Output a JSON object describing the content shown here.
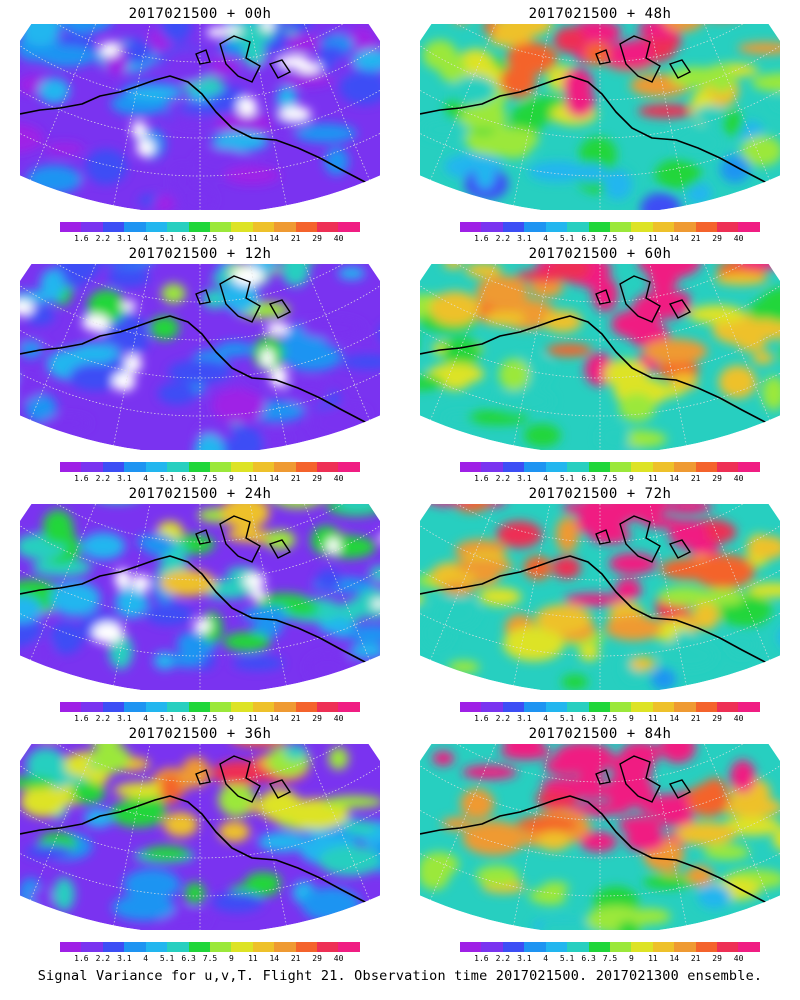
{
  "colorbar": {
    "ticks": [
      "1.6",
      "2.2",
      "3.1",
      "4",
      "5.1",
      "6.3",
      "7.5",
      "9",
      "11",
      "14",
      "21",
      "29",
      "40"
    ],
    "colors": [
      "#9f20e6",
      "#7a33f0",
      "#3c4ef5",
      "#1e94f2",
      "#22b6ef",
      "#27cfc0",
      "#20d63a",
      "#9be83a",
      "#dde326",
      "#eec12a",
      "#ef9a32",
      "#f4632c",
      "#ee2f55",
      "#f01d82"
    ]
  },
  "panels": [
    {
      "title": "2017021500 + 00h",
      "hot": 0.15,
      "white": true
    },
    {
      "title": "2017021500 + 48h",
      "hot": 0.65,
      "white": false
    },
    {
      "title": "2017021500 + 12h",
      "hot": 0.25,
      "white": true
    },
    {
      "title": "2017021500 + 60h",
      "hot": 0.75,
      "white": false
    },
    {
      "title": "2017021500 + 24h",
      "hot": 0.38,
      "white": true
    },
    {
      "title": "2017021500 + 72h",
      "hot": 0.85,
      "white": false
    },
    {
      "title": "2017021500 + 36h",
      "hot": 0.5,
      "white": false
    },
    {
      "title": "2017021500 + 84h",
      "hot": 0.95,
      "white": false
    }
  ],
  "footer": "Signal Variance for u,v,T. Flight 21. Observation time 2017021500. 2017021300 ensemble."
}
